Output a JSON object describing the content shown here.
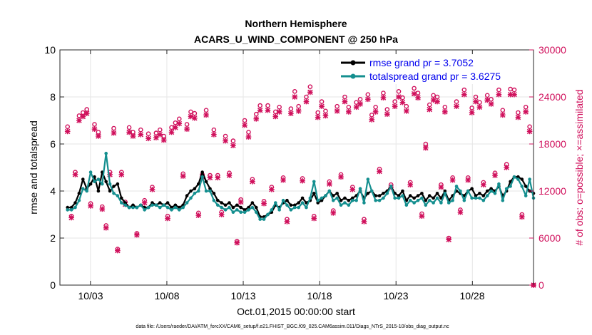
{
  "chart_data": {
    "type": "line",
    "title": "Northern Hemisphere",
    "subtitle": "ACARS_U_WIND_COMPONENT @ 250 hPa",
    "xlabel": "Oct.01,2015 00:00:00 start",
    "ylabel_left": "rmse and totalspread",
    "ylabel_right": "# of obs: o=possible; ×=assimilated",
    "footnote": "data file: /Users/raeder/DAI/ATM_forcXX/CAM6_setup/f.e21.FHIST_BGC.f09_025.CAM6assim.011/Diags_NTrS_2015-10/obs_diag_output.nc",
    "x_tick_labels": [
      "10/03",
      "10/08",
      "10/13",
      "10/18",
      "10/23",
      "10/28"
    ],
    "x_tick_values": [
      3,
      8,
      13,
      18,
      23,
      28
    ],
    "xlim": [
      1,
      32
    ],
    "ylim_left": [
      0,
      10
    ],
    "ylim_right": [
      0,
      30000
    ],
    "y_left_ticks": [
      "0",
      "2",
      "4",
      "6",
      "8",
      "10"
    ],
    "y_right_ticks": [
      "0",
      "6000",
      "12000",
      "18000",
      "24000",
      "30000"
    ],
    "grid": true,
    "legend_position": "top-right",
    "colors": {
      "rmse": "#000000",
      "spread": "#148f8f",
      "obs": "#d0105c",
      "legend_text": "#0000ee"
    },
    "series": [
      {
        "name": "rmse grand pr = 3.7052",
        "axis": "left",
        "color": "#000000",
        "values": [
          3.3,
          3.3,
          3.5,
          3.9,
          4.5,
          4.1,
          4.3,
          4.6,
          4.0,
          4.8,
          4.4,
          4.0,
          4.2,
          4.3,
          3.7,
          3.5,
          3.3,
          3.4,
          3.3,
          3.4,
          3.3,
          3.3,
          3.5,
          3.4,
          3.5,
          3.4,
          3.5,
          3.3,
          3.4,
          3.3,
          3.4,
          3.8,
          4.0,
          4.1,
          4.3,
          4.8,
          4.4,
          4.1,
          3.9,
          3.6,
          3.5,
          3.4,
          3.5,
          3.3,
          3.4,
          3.3,
          3.2,
          3.3,
          3.5,
          3.3,
          2.9,
          2.9,
          3.0,
          3.1,
          3.4,
          3.3,
          3.5,
          3.6,
          3.4,
          3.4,
          3.5,
          3.7,
          3.5,
          3.6,
          3.9,
          3.5,
          3.6,
          3.8,
          4.0,
          3.8,
          3.9,
          3.6,
          3.7,
          3.6,
          3.7,
          3.8,
          4.0,
          3.7,
          3.9,
          4.0,
          3.8,
          3.8,
          3.9,
          4.0,
          4.2,
          3.9,
          3.8,
          4.0,
          3.6,
          3.8,
          3.7,
          3.8,
          3.9,
          3.6,
          3.8,
          3.7,
          3.9,
          3.7,
          4.0,
          3.6,
          3.8,
          4.0,
          3.9,
          3.8,
          4.0,
          4.1,
          3.8,
          3.9,
          3.8,
          4.0,
          4.1,
          4.0,
          4.2,
          3.8,
          4.0,
          4.4,
          4.6,
          4.6,
          4.5,
          4.2,
          4.0,
          3.9
        ]
      },
      {
        "name": "totalspread grand pr = 3.6275",
        "axis": "left",
        "color": "#148f8f",
        "values": [
          3.2,
          3.2,
          3.3,
          3.6,
          4.1,
          4.0,
          4.8,
          4.4,
          4.5,
          4.3,
          5.6,
          4.3,
          3.9,
          3.8,
          3.5,
          3.4,
          3.3,
          3.3,
          3.3,
          3.4,
          3.2,
          3.3,
          3.4,
          3.4,
          3.3,
          3.4,
          3.3,
          3.2,
          3.3,
          3.2,
          3.3,
          3.5,
          3.7,
          3.9,
          4.0,
          4.6,
          4.0,
          4.0,
          3.6,
          3.4,
          3.3,
          3.2,
          3.3,
          3.1,
          3.2,
          3.1,
          3.1,
          3.2,
          3.3,
          3.1,
          2.8,
          2.8,
          3.0,
          3.2,
          3.5,
          3.2,
          3.6,
          3.4,
          3.2,
          3.3,
          3.3,
          3.5,
          3.3,
          3.7,
          4.4,
          3.6,
          3.7,
          3.8,
          4.0,
          3.6,
          3.7,
          3.4,
          3.5,
          3.4,
          3.6,
          3.6,
          4.1,
          3.5,
          4.5,
          4.0,
          3.6,
          3.6,
          3.7,
          3.9,
          4.2,
          3.7,
          3.7,
          3.8,
          3.4,
          3.6,
          3.5,
          3.6,
          3.7,
          3.4,
          3.6,
          3.5,
          3.7,
          3.5,
          3.9,
          3.5,
          3.6,
          4.2,
          4.0,
          3.6,
          4.0,
          3.7,
          3.7,
          3.7,
          3.6,
          3.8,
          4.0,
          3.9,
          4.3,
          3.6,
          4.1,
          4.2,
          4.6,
          4.5,
          4.2,
          3.8,
          4.5,
          3.7
        ]
      },
      {
        "name": "possible obs",
        "axis": "right",
        "color": "#d0105c",
        "marker": "circle",
        "values": [
          20200,
          8800,
          14400,
          21600,
          22000,
          22400,
          10400,
          20500,
          19500,
          10000,
          7600,
          14400,
          20000,
          4600,
          14400,
          10600,
          20100,
          19500,
          6600,
          19800,
          10800,
          19300,
          12500,
          19400,
          19800,
          19000,
          8800,
          20100,
          20700,
          21200,
          14200,
          20500,
          22100,
          21900,
          9200,
          14100,
          22300,
          14000,
          19800,
          14000,
          9300,
          19000,
          14300,
          18400,
          5600,
          10900,
          21000,
          19500,
          13500,
          21800,
          22900,
          10700,
          22900,
          12500,
          22100,
          22700,
          13700,
          8400,
          22500,
          24700,
          22800,
          13600,
          24000,
          25300,
          8800,
          22000,
          23400,
          22200,
          13200,
          9500,
          22800,
          14100,
          24000,
          22700,
          12500,
          23300,
          23700,
          8400,
          24300,
          21700,
          22700,
          14800,
          24500,
          22400,
          12800,
          23400,
          24700,
          23900,
          22800,
          13100,
          25100,
          24500,
          9100,
          18000,
          23000,
          24200,
          24000,
          12800,
          22700,
          6000,
          13700,
          23400,
          9600,
          24900,
          13700,
          22600,
          24000,
          23300,
          13100,
          24200,
          23700,
          14300,
          24900,
          22300,
          15400,
          25000,
          24900,
          22000,
          9000,
          22700,
          20200,
          0
        ]
      },
      {
        "name": "assimilated obs",
        "axis": "right",
        "color": "#d0105c",
        "marker": "star",
        "values": [
          19600,
          8600,
          14100,
          21000,
          21500,
          21900,
          10100,
          19900,
          19000,
          9700,
          7300,
          14100,
          19400,
          4400,
          14100,
          10300,
          19500,
          19000,
          6400,
          19200,
          10500,
          18700,
          12200,
          18800,
          19200,
          18500,
          8500,
          19500,
          20100,
          20600,
          13900,
          19900,
          21500,
          21300,
          8900,
          13800,
          21700,
          13700,
          19200,
          13700,
          9000,
          18400,
          14000,
          17800,
          5400,
          10600,
          20400,
          18900,
          13200,
          21200,
          22300,
          10400,
          22300,
          12200,
          21500,
          22100,
          13400,
          8100,
          21900,
          24000,
          22200,
          13300,
          23400,
          24600,
          8500,
          21400,
          22800,
          21600,
          12900,
          9200,
          22200,
          13800,
          23400,
          22100,
          12200,
          22700,
          23100,
          8100,
          23700,
          21100,
          22100,
          14500,
          23900,
          21800,
          12500,
          22800,
          24000,
          23300,
          22200,
          12800,
          24400,
          23900,
          8800,
          17500,
          22400,
          23600,
          23400,
          12500,
          22100,
          5800,
          13400,
          22800,
          9300,
          24300,
          13400,
          22000,
          23400,
          22700,
          12800,
          23600,
          23100,
          14000,
          24300,
          21700,
          15000,
          24300,
          24300,
          21400,
          8700,
          22100,
          19600,
          0
        ]
      }
    ]
  }
}
